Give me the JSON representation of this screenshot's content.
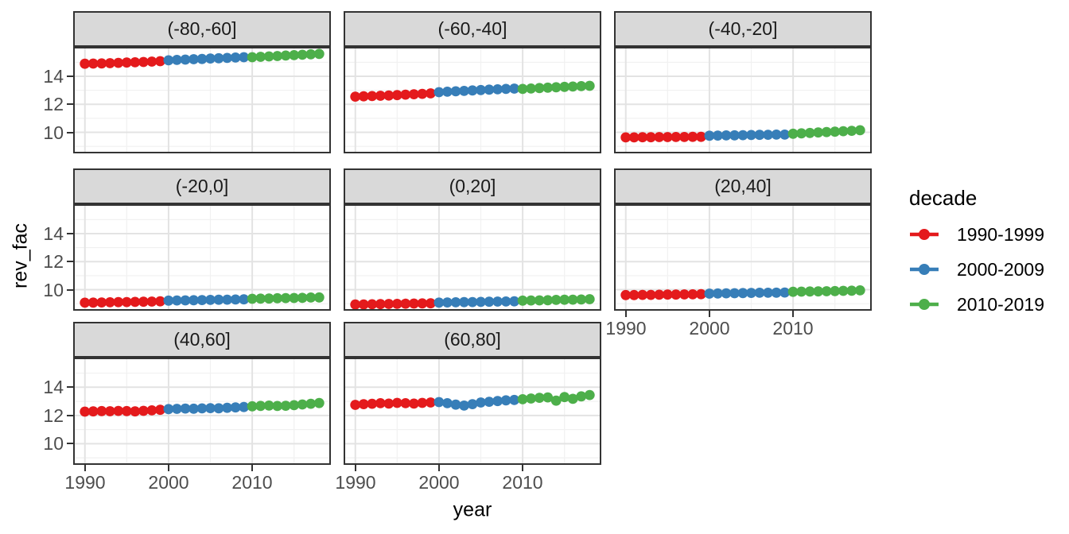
{
  "chart_data": {
    "type": "scatter",
    "title": "",
    "xlabel": "year",
    "ylabel": "rev_fac",
    "legend_title": "decade",
    "legend_position": "right",
    "grid": "major+minor",
    "x_ticks": [
      1990,
      2000,
      2010
    ],
    "x_minor_ticks": [
      1995,
      2005,
      2015
    ],
    "y_ticks": [
      10,
      12,
      14
    ],
    "y_minor_ticks": [
      9,
      11,
      13,
      15
    ],
    "xlim": [
      1988.6,
      2019.4
    ],
    "ylim": [
      8.5,
      16.1
    ],
    "years": [
      1990,
      1991,
      1992,
      1993,
      1994,
      1995,
      1996,
      1997,
      1998,
      1999,
      2000,
      2001,
      2002,
      2003,
      2004,
      2005,
      2006,
      2007,
      2008,
      2009,
      2010,
      2011,
      2012,
      2013,
      2014,
      2015,
      2016,
      2017,
      2018
    ],
    "series": [
      {
        "name": "1990-1999",
        "color": "#E41A1C",
        "year_range": [
          1990,
          1999
        ]
      },
      {
        "name": "2000-2009",
        "color": "#377EB8",
        "year_range": [
          2000,
          2009
        ]
      },
      {
        "name": "2010-2019",
        "color": "#4DAF4A",
        "year_range": [
          2010,
          2018
        ]
      }
    ],
    "facets": [
      {
        "label": "(-80,-60]",
        "values": [
          14.9,
          14.91,
          14.92,
          14.94,
          14.96,
          14.98,
          15.0,
          15.02,
          15.05,
          15.08,
          15.14,
          15.17,
          15.19,
          15.22,
          15.24,
          15.27,
          15.29,
          15.31,
          15.34,
          15.36,
          15.36,
          15.39,
          15.42,
          15.45,
          15.48,
          15.51,
          15.54,
          15.57,
          15.6
        ]
      },
      {
        "label": "(-60,-40]",
        "values": [
          12.55,
          12.57,
          12.59,
          12.61,
          12.63,
          12.66,
          12.69,
          12.72,
          12.75,
          12.78,
          12.87,
          12.9,
          12.93,
          12.96,
          12.99,
          13.02,
          13.05,
          13.07,
          13.1,
          13.12,
          13.1,
          13.13,
          13.16,
          13.19,
          13.22,
          13.25,
          13.27,
          13.3,
          13.32
        ]
      },
      {
        "label": "(-40,-20]",
        "values": [
          9.64,
          9.64,
          9.65,
          9.65,
          9.66,
          9.66,
          9.67,
          9.67,
          9.68,
          9.68,
          9.76,
          9.77,
          9.78,
          9.79,
          9.8,
          9.81,
          9.82,
          9.83,
          9.84,
          9.84,
          9.9,
          9.93,
          9.96,
          9.99,
          10.02,
          10.05,
          10.08,
          10.11,
          10.15
        ]
      },
      {
        "label": "(-20,0]",
        "values": [
          9.07,
          9.08,
          9.09,
          9.1,
          9.11,
          9.12,
          9.13,
          9.14,
          9.15,
          9.17,
          9.22,
          9.23,
          9.24,
          9.25,
          9.26,
          9.27,
          9.28,
          9.29,
          9.3,
          9.31,
          9.35,
          9.36,
          9.37,
          9.39,
          9.4,
          9.41,
          9.42,
          9.44,
          9.45
        ]
      },
      {
        "label": "(0,20]",
        "values": [
          8.94,
          8.95,
          8.96,
          8.97,
          8.98,
          8.99,
          9.0,
          9.01,
          9.02,
          9.03,
          9.08,
          9.09,
          9.1,
          9.11,
          9.12,
          9.13,
          9.14,
          9.15,
          9.16,
          9.17,
          9.22,
          9.23,
          9.24,
          9.25,
          9.27,
          9.28,
          9.29,
          9.3,
          9.32
        ]
      },
      {
        "label": "(20,40]",
        "values": [
          9.62,
          9.62,
          9.63,
          9.63,
          9.64,
          9.65,
          9.65,
          9.66,
          9.67,
          9.68,
          9.72,
          9.73,
          9.74,
          9.75,
          9.76,
          9.77,
          9.78,
          9.78,
          9.79,
          9.8,
          9.85,
          9.86,
          9.87,
          9.88,
          9.89,
          9.9,
          9.92,
          9.93,
          9.95
        ]
      },
      {
        "label": "(40,60]",
        "values": [
          12.27,
          12.29,
          12.31,
          12.3,
          12.32,
          12.31,
          12.29,
          12.33,
          12.36,
          12.4,
          12.45,
          12.47,
          12.49,
          12.48,
          12.5,
          12.52,
          12.51,
          12.54,
          12.57,
          12.6,
          12.65,
          12.68,
          12.7,
          12.67,
          12.69,
          12.73,
          12.78,
          12.83,
          12.88
        ]
      },
      {
        "label": "(60,80]",
        "values": [
          12.75,
          12.8,
          12.83,
          12.87,
          12.84,
          12.89,
          12.87,
          12.84,
          12.89,
          12.92,
          12.95,
          12.87,
          12.77,
          12.7,
          12.8,
          12.92,
          12.97,
          13.02,
          13.07,
          13.1,
          13.15,
          13.2,
          13.25,
          13.28,
          13.05,
          13.3,
          13.18,
          13.35,
          13.45
        ]
      }
    ]
  }
}
